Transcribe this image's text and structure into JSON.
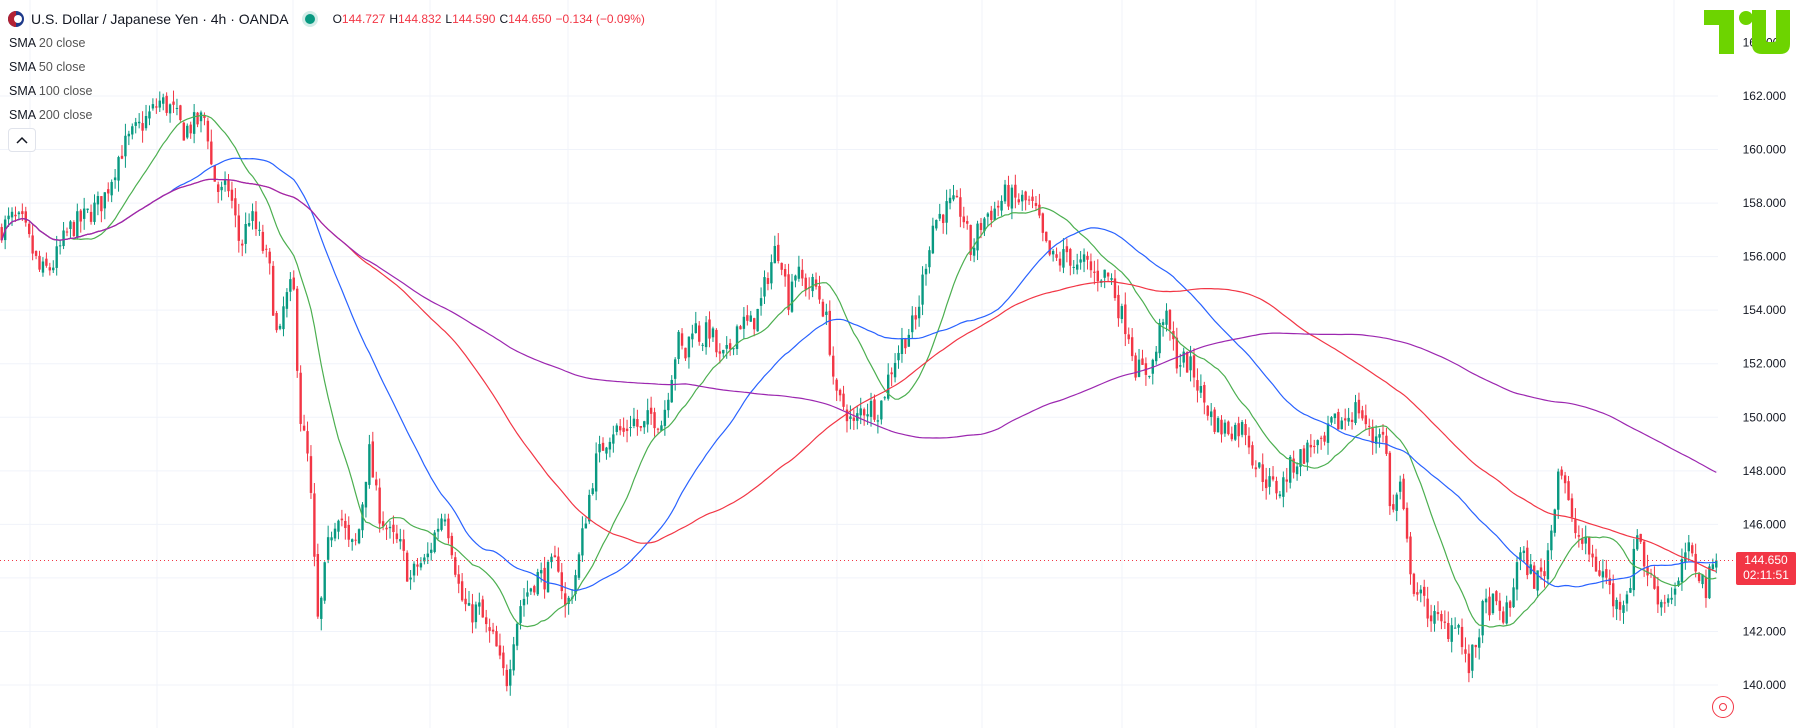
{
  "header": {
    "symbol_title": "U.S. Dollar / Japanese Yen · 4h · OANDA",
    "open_label": "O",
    "open_value": "144.727",
    "high_label": "H",
    "high_value": "144.832",
    "low_label": "L",
    "low_value": "144.590",
    "close_label": "C",
    "close_value": "144.650",
    "change": "−0.134 (−0.09%)"
  },
  "indicators": [
    {
      "name": "SMA",
      "param": "20 close",
      "color": "#4caf50"
    },
    {
      "name": "SMA",
      "param": "50 close",
      "color": "#2962ff"
    },
    {
      "name": "SMA",
      "param": "100 close",
      "color": "#f23645"
    },
    {
      "name": "SMA",
      "param": "200 close",
      "color": "#9c27b0"
    }
  ],
  "collapse_icon": "chevron-up-icon",
  "logo": "tradingview-logo",
  "price_tag": {
    "price": "144.650",
    "countdown": "02:11:51",
    "color": "#f23645"
  },
  "colors": {
    "up": "#089981",
    "down": "#f23645",
    "grid": "#f0f3fa"
  },
  "chart_data": {
    "type": "candlestick",
    "title": "U.S. Dollar / Japanese Yen · 4h · OANDA",
    "y_axis": {
      "ticks": [
        "162.000",
        "160.000",
        "158.000",
        "156.000",
        "154.000",
        "152.000",
        "150.000",
        "148.000",
        "146.000",
        "144.000",
        "142.000",
        "140.000"
      ],
      "partial_top_tick": "164.000",
      "range": [
        139.1,
        165.0
      ]
    },
    "last_price": 144.65,
    "path_anchors": [
      [
        0,
        157.0
      ],
      [
        10,
        157.4
      ],
      [
        20,
        157.2
      ],
      [
        35,
        155.4
      ],
      [
        45,
        155.6
      ],
      [
        60,
        157.0
      ],
      [
        75,
        157.5
      ],
      [
        90,
        158.1
      ],
      [
        105,
        159.9
      ],
      [
        115,
        160.5
      ],
      [
        125,
        161.0
      ],
      [
        140,
        161.8
      ],
      [
        150,
        161.5
      ],
      [
        160,
        160.7
      ],
      [
        175,
        161.1
      ],
      [
        180,
        161.2
      ],
      [
        185,
        159.2
      ],
      [
        192,
        158.3
      ],
      [
        200,
        158.6
      ],
      [
        210,
        156.3
      ],
      [
        218,
        157.6
      ],
      [
        228,
        156.5
      ],
      [
        235,
        155.6
      ],
      [
        243,
        152.5
      ],
      [
        248,
        154.2
      ],
      [
        256,
        155.0
      ],
      [
        262,
        150.1
      ],
      [
        270,
        148.1
      ],
      [
        275,
        144.1
      ],
      [
        278,
        142.0
      ],
      [
        282,
        143.7
      ],
      [
        288,
        145.6
      ],
      [
        296,
        146.6
      ],
      [
        305,
        145.1
      ],
      [
        312,
        145.3
      ],
      [
        322,
        148.8
      ],
      [
        330,
        146.6
      ],
      [
        340,
        145.6
      ],
      [
        350,
        145.1
      ],
      [
        358,
        143.9
      ],
      [
        365,
        144.5
      ],
      [
        372,
        144.6
      ],
      [
        380,
        145.7
      ],
      [
        388,
        146.6
      ],
      [
        395,
        145.1
      ],
      [
        402,
        143.3
      ],
      [
        410,
        142.6
      ],
      [
        418,
        142.9
      ],
      [
        425,
        142.0
      ],
      [
        432,
        141.6
      ],
      [
        438,
        140.5
      ],
      [
        443,
        140.2
      ],
      [
        448,
        141.8
      ],
      [
        455,
        143.1
      ],
      [
        462,
        143.6
      ],
      [
        470,
        144.1
      ],
      [
        476,
        144.0
      ],
      [
        480,
        144.3
      ],
      [
        488,
        144.6
      ],
      [
        493,
        142.8
      ],
      [
        498,
        143.3
      ],
      [
        505,
        144.6
      ],
      [
        512,
        146.5
      ],
      [
        520,
        148.3
      ],
      [
        528,
        149.1
      ],
      [
        535,
        149.6
      ],
      [
        545,
        149.4
      ],
      [
        552,
        150.0
      ],
      [
        560,
        149.4
      ],
      [
        568,
        150.1
      ],
      [
        578,
        149.8
      ],
      [
        585,
        151.4
      ],
      [
        592,
        152.9
      ],
      [
        598,
        152.2
      ],
      [
        605,
        153.6
      ],
      [
        612,
        152.9
      ],
      [
        620,
        153.3
      ],
      [
        628,
        152.1
      ],
      [
        635,
        152.3
      ],
      [
        645,
        153.6
      ],
      [
        655,
        153.4
      ],
      [
        663,
        154.0
      ],
      [
        670,
        155.3
      ],
      [
        678,
        156.4
      ],
      [
        683,
        155.9
      ],
      [
        688,
        154.3
      ],
      [
        693,
        155.6
      ],
      [
        698,
        155.2
      ],
      [
        705,
        154.9
      ],
      [
        712,
        154.9
      ],
      [
        718,
        154.2
      ],
      [
        723,
        153.3
      ],
      [
        730,
        150.6
      ],
      [
        738,
        150.4
      ],
      [
        745,
        149.6
      ],
      [
        752,
        150.3
      ],
      [
        760,
        150.4
      ],
      [
        768,
        150.3
      ],
      [
        775,
        151.4
      ],
      [
        782,
        152.3
      ],
      [
        790,
        153.0
      ],
      [
        800,
        153.6
      ],
      [
        808,
        155.8
      ],
      [
        815,
        157.3
      ],
      [
        822,
        157.6
      ],
      [
        830,
        157.9
      ],
      [
        840,
        157.7
      ],
      [
        848,
        156.1
      ],
      [
        855,
        157.1
      ],
      [
        862,
        157.6
      ],
      [
        870,
        157.8
      ],
      [
        878,
        158.3
      ],
      [
        885,
        158.1
      ],
      [
        892,
        158.1
      ],
      [
        898,
        158.0
      ],
      [
        905,
        157.6
      ],
      [
        912,
        156.4
      ],
      [
        918,
        155.9
      ],
      [
        925,
        155.8
      ],
      [
        932,
        156.2
      ],
      [
        940,
        155.5
      ],
      [
        948,
        155.8
      ],
      [
        955,
        155.3
      ],
      [
        962,
        155.4
      ],
      [
        970,
        155.2
      ],
      [
        978,
        153.9
      ],
      [
        985,
        153.3
      ],
      [
        992,
        151.8
      ],
      [
        1000,
        151.7
      ],
      [
        1008,
        152.1
      ],
      [
        1015,
        153.9
      ],
      [
        1020,
        153.4
      ],
      [
        1028,
        152.1
      ],
      [
        1035,
        152.1
      ],
      [
        1042,
        151.7
      ],
      [
        1050,
        150.7
      ],
      [
        1058,
        150.0
      ],
      [
        1065,
        149.6
      ],
      [
        1072,
        149.6
      ],
      [
        1080,
        149.6
      ],
      [
        1088,
        149.6
      ],
      [
        1095,
        148.3
      ],
      [
        1102,
        147.9
      ],
      [
        1110,
        147.4
      ],
      [
        1118,
        147.3
      ],
      [
        1125,
        148.0
      ],
      [
        1132,
        148.4
      ],
      [
        1140,
        148.7
      ],
      [
        1148,
        149.1
      ],
      [
        1155,
        148.7
      ],
      [
        1162,
        149.7
      ],
      [
        1170,
        149.8
      ],
      [
        1178,
        150.1
      ],
      [
        1186,
        150.4
      ],
      [
        1192,
        149.8
      ],
      [
        1198,
        149.1
      ],
      [
        1205,
        149.7
      ],
      [
        1210,
        148.8
      ],
      [
        1215,
        146.1
      ],
      [
        1222,
        147.6
      ],
      [
        1228,
        145.3
      ],
      [
        1235,
        143.6
      ],
      [
        1242,
        143.1
      ],
      [
        1250,
        142.6
      ],
      [
        1258,
        142.2
      ],
      [
        1265,
        142.1
      ],
      [
        1272,
        142.6
      ],
      [
        1278,
        141.0
      ],
      [
        1282,
        140.6
      ],
      [
        1288,
        141.4
      ],
      [
        1295,
        142.8
      ],
      [
        1302,
        143.1
      ],
      [
        1310,
        142.6
      ],
      [
        1318,
        142.7
      ],
      [
        1325,
        144.9
      ],
      [
        1332,
        144.6
      ],
      [
        1340,
        143.9
      ],
      [
        1348,
        144.2
      ],
      [
        1355,
        145.9
      ],
      [
        1360,
        148.1
      ],
      [
        1365,
        148.0
      ],
      [
        1372,
        146.0
      ],
      [
        1380,
        145.4
      ],
      [
        1388,
        144.9
      ],
      [
        1395,
        144.3
      ],
      [
        1402,
        144.1
      ],
      [
        1410,
        142.9
      ],
      [
        1418,
        143.3
      ],
      [
        1425,
        144.1
      ],
      [
        1430,
        146.1
      ],
      [
        1435,
        144.6
      ],
      [
        1442,
        143.9
      ],
      [
        1450,
        143.1
      ],
      [
        1458,
        143.4
      ],
      [
        1465,
        143.6
      ],
      [
        1472,
        145.1
      ],
      [
        1478,
        144.6
      ],
      [
        1484,
        144.2
      ],
      [
        1490,
        143.5
      ],
      [
        1495,
        144.5
      ],
      [
        1500,
        144.65
      ]
    ],
    "series": [
      {
        "name": "SMA 20 close",
        "color": "#4caf50",
        "period": 20
      },
      {
        "name": "SMA 50 close",
        "color": "#2962ff",
        "period": 50
      },
      {
        "name": "SMA 100 close",
        "color": "#f23645",
        "period": 100
      },
      {
        "name": "SMA 200 close",
        "color": "#9c27b0",
        "period": 200
      }
    ]
  }
}
